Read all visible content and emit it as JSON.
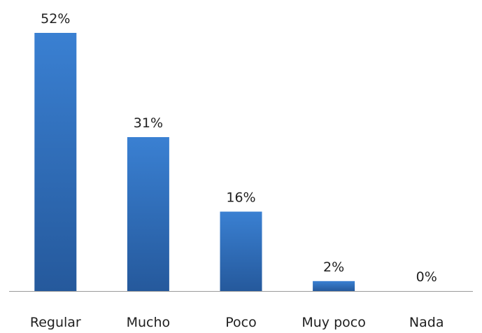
{
  "chart_data": {
    "type": "bar",
    "categories": [
      "Regular",
      "Mucho",
      "Poco",
      "Muy poco",
      "Nada"
    ],
    "values": [
      52,
      31,
      16,
      2,
      0
    ],
    "data_labels": [
      "52%",
      "31%",
      "16%",
      "2%",
      "0%"
    ],
    "unit": "%",
    "ylim": [
      0,
      52
    ],
    "grid": false,
    "legend": "none",
    "bar_color": "#2f6fbd",
    "bar_color_dark": "#245a9e"
  }
}
